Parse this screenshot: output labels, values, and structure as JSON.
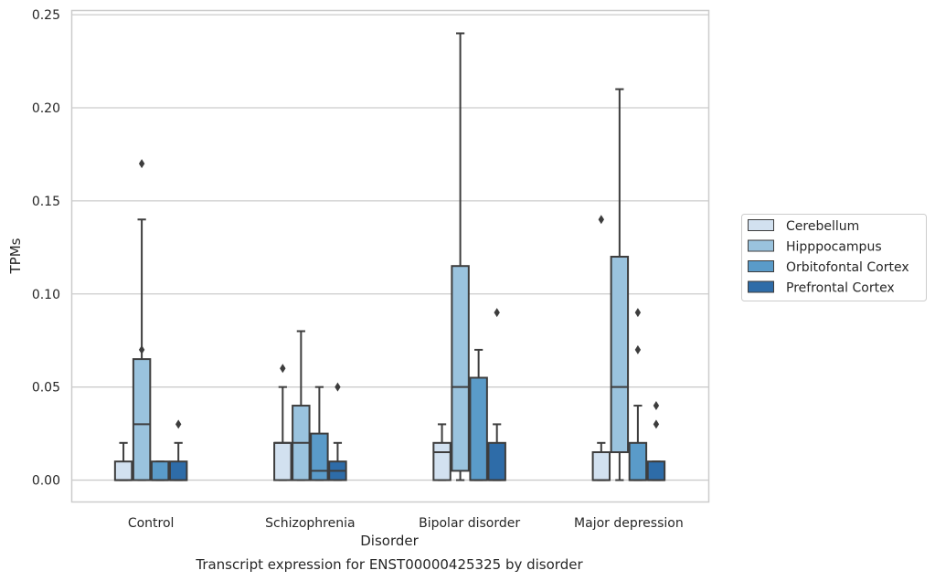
{
  "chart_data": {
    "type": "box",
    "xlabel": "Disorder",
    "ylabel": "TPMs",
    "caption": "Transcript expression for ENST00000425325 by disorder",
    "ylim": [
      -0.0115,
      0.2525
    ],
    "yticks": [
      "0.00",
      "0.05",
      "0.10",
      "0.15",
      "0.20",
      "0.25"
    ],
    "categories": [
      "Control",
      "Schizophrenia",
      "Bipolar disorder",
      "Major depression"
    ],
    "grid": "horizontal",
    "legend_position": "right",
    "series": [
      {
        "name": "Cerebellum",
        "color": "#d2e1f0",
        "boxes": [
          {
            "q1": 0.0,
            "median": 0.0,
            "q3": 0.01,
            "whislo": 0.0,
            "whishi": 0.02,
            "fliers": []
          },
          {
            "q1": 0.0,
            "median": 0.02,
            "q3": 0.02,
            "whislo": 0.0,
            "whishi": 0.05,
            "fliers": [
              0.06
            ]
          },
          {
            "q1": 0.0,
            "median": 0.015,
            "q3": 0.02,
            "whislo": 0.0,
            "whishi": 0.03,
            "fliers": []
          },
          {
            "q1": 0.0,
            "median": 0.0,
            "q3": 0.015,
            "whislo": 0.0,
            "whishi": 0.02,
            "fliers": [
              0.14
            ]
          }
        ]
      },
      {
        "name": "Hipppocampus",
        "color": "#9ac3de",
        "boxes": [
          {
            "q1": 0.0,
            "median": 0.03,
            "q3": 0.065,
            "whislo": 0.0,
            "whishi": 0.14,
            "fliers": [
              0.07,
              0.17
            ]
          },
          {
            "q1": 0.0,
            "median": 0.02,
            "q3": 0.04,
            "whislo": 0.0,
            "whishi": 0.08,
            "fliers": []
          },
          {
            "q1": 0.005,
            "median": 0.05,
            "q3": 0.115,
            "whislo": 0.0,
            "whishi": 0.24,
            "fliers": []
          },
          {
            "q1": 0.015,
            "median": 0.05,
            "q3": 0.12,
            "whislo": 0.0,
            "whishi": 0.21,
            "fliers": []
          }
        ]
      },
      {
        "name": "Orbitofontal Cortex",
        "color": "#5a9bc9",
        "boxes": [
          {
            "q1": 0.0,
            "median": 0.0,
            "q3": 0.01,
            "whislo": 0.0,
            "whishi": 0.01,
            "fliers": []
          },
          {
            "q1": 0.0,
            "median": 0.005,
            "q3": 0.025,
            "whislo": 0.0,
            "whishi": 0.05,
            "fliers": []
          },
          {
            "q1": 0.0,
            "median": 0.0,
            "q3": 0.055,
            "whislo": 0.0,
            "whishi": 0.07,
            "fliers": []
          },
          {
            "q1": 0.0,
            "median": 0.0,
            "q3": 0.02,
            "whislo": 0.0,
            "whishi": 0.04,
            "fliers": [
              0.07,
              0.09
            ]
          }
        ]
      },
      {
        "name": "Prefrontal Cortex",
        "color": "#2e6ca8",
        "boxes": [
          {
            "q1": 0.0,
            "median": 0.0,
            "q3": 0.01,
            "whislo": 0.0,
            "whishi": 0.02,
            "fliers": [
              0.03
            ]
          },
          {
            "q1": 0.0,
            "median": 0.005,
            "q3": 0.01,
            "whislo": 0.0,
            "whishi": 0.02,
            "fliers": [
              0.05
            ]
          },
          {
            "q1": 0.0,
            "median": 0.0,
            "q3": 0.02,
            "whislo": 0.0,
            "whishi": 0.03,
            "fliers": [
              0.09
            ]
          },
          {
            "q1": 0.0,
            "median": 0.0,
            "q3": 0.01,
            "whislo": 0.0,
            "whishi": 0.01,
            "fliers": [
              0.03,
              0.04
            ]
          }
        ]
      }
    ]
  }
}
